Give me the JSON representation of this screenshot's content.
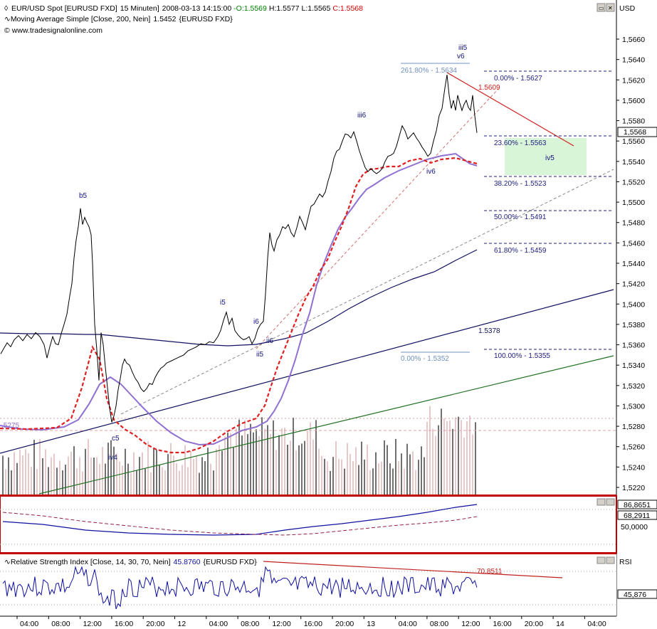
{
  "chart_data": {
    "type": "line",
    "title": "EUR/USD Spot [EURUSD FXD]  15 Minuten]",
    "header": {
      "symbol": "EUR/USD Spot [EURUSD FXD]",
      "interval": "15 Minuten]",
      "datetime": "2008-03-13 14:15:00",
      "open": "-O:1.5569",
      "high": "H:1.5577",
      "low": "L:1.5565",
      "close": "C:1.5568",
      "ma_label": "Moving Average Simple [Close, 200, Nein]",
      "ma_value": "1.5452",
      "ma_symbol": "{EURUSD FXD}",
      "website": "www.tradesignalonline.com"
    },
    "price_axis_title": "USD",
    "y_ticks": [
      "1,5660",
      "1,5640",
      "1,5620",
      "1,5600",
      "1,5580",
      "1,5560",
      "1,5540",
      "1,5520",
      "1,5500",
      "1,5480",
      "1,5460",
      "1,5440",
      "1,5420",
      "1,5400",
      "1,5380",
      "1,5360",
      "1,5340",
      "1,5320",
      "1,5300",
      "1,5280",
      "1,5260",
      "1,5240",
      "1,5220"
    ],
    "ylim": [
      1.5212,
      1.568
    ],
    "last_price": "1,5568",
    "price_series": [
      [
        1,
        1.5351
      ],
      [
        5,
        1.5356
      ],
      [
        10,
        1.5362
      ],
      [
        15,
        1.5358
      ],
      [
        20,
        1.5365
      ],
      [
        26,
        1.5369
      ],
      [
        32,
        1.5364
      ],
      [
        38,
        1.537
      ],
      [
        44,
        1.5366
      ],
      [
        50,
        1.5372
      ],
      [
        56,
        1.5368
      ],
      [
        62,
        1.536
      ],
      [
        66,
        1.5347
      ],
      [
        70,
        1.5358
      ],
      [
        74,
        1.5368
      ],
      [
        78,
        1.5361
      ],
      [
        82,
        1.536
      ],
      [
        86,
        1.5371
      ],
      [
        90,
        1.538
      ],
      [
        94,
        1.539
      ],
      [
        98,
        1.5408
      ],
      [
        101,
        1.542
      ],
      [
        104,
        1.5445
      ],
      [
        107,
        1.5463
      ],
      [
        110,
        1.5476
      ],
      [
        113,
        1.5494
      ],
      [
        116,
        1.5478
      ],
      [
        119,
        1.5485
      ],
      [
        122,
        1.548
      ],
      [
        125,
        1.5476
      ],
      [
        128,
        1.5468
      ],
      [
        130,
        1.544
      ],
      [
        133,
        1.538
      ],
      [
        136,
        1.5355
      ],
      [
        139,
        1.5325
      ],
      [
        142,
        1.5372
      ],
      [
        145,
        1.536
      ],
      [
        148,
        1.5338
      ],
      [
        151,
        1.5318
      ],
      [
        154,
        1.5298
      ],
      [
        157,
        1.5284
      ],
      [
        160,
        1.529
      ],
      [
        163,
        1.53
      ],
      [
        166,
        1.5316
      ],
      [
        169,
        1.5327
      ],
      [
        172,
        1.534
      ],
      [
        175,
        1.5346
      ],
      [
        178,
        1.5342
      ],
      [
        182,
        1.534
      ],
      [
        186,
        1.5333
      ],
      [
        190,
        1.5327
      ],
      [
        194,
        1.5323
      ],
      [
        198,
        1.5317
      ],
      [
        202,
        1.5314
      ],
      [
        206,
        1.5317
      ],
      [
        210,
        1.5322
      ],
      [
        214,
        1.5321
      ],
      [
        218,
        1.5328
      ],
      [
        222,
        1.5333
      ],
      [
        226,
        1.5337
      ],
      [
        230,
        1.5339
      ],
      [
        234,
        1.5342
      ],
      [
        240,
        1.5344
      ],
      [
        246,
        1.5346
      ],
      [
        252,
        1.5348
      ],
      [
        258,
        1.535
      ],
      [
        264,
        1.5354
      ],
      [
        270,
        1.5356
      ],
      [
        276,
        1.5358
      ],
      [
        282,
        1.5361
      ],
      [
        288,
        1.536
      ],
      [
        294,
        1.5363
      ],
      [
        300,
        1.5362
      ],
      [
        306,
        1.5368
      ],
      [
        310,
        1.5374
      ],
      [
        314,
        1.5384
      ],
      [
        318,
        1.5392
      ],
      [
        322,
        1.538
      ],
      [
        326,
        1.5386
      ],
      [
        330,
        1.5374
      ],
      [
        334,
        1.537
      ],
      [
        338,
        1.5367
      ],
      [
        342,
        1.5365
      ],
      [
        346,
        1.5366
      ],
      [
        350,
        1.5368
      ],
      [
        354,
        1.5361
      ],
      [
        358,
        1.5366
      ],
      [
        362,
        1.5375
      ],
      [
        366,
        1.538
      ],
      [
        370,
        1.5383
      ],
      [
        373,
        1.541
      ],
      [
        376,
        1.5445
      ],
      [
        379,
        1.547
      ],
      [
        382,
        1.5458
      ],
      [
        385,
        1.5452
      ],
      [
        389,
        1.5463
      ],
      [
        393,
        1.5468
      ],
      [
        397,
        1.5476
      ],
      [
        401,
        1.5474
      ],
      [
        405,
        1.5478
      ],
      [
        409,
        1.547
      ],
      [
        413,
        1.5466
      ],
      [
        417,
        1.5475
      ],
      [
        421,
        1.5486
      ],
      [
        425,
        1.548
      ],
      [
        429,
        1.5473
      ],
      [
        433,
        1.5485
      ],
      [
        437,
        1.5496
      ],
      [
        441,
        1.5498
      ],
      [
        445,
        1.5503
      ],
      [
        449,
        1.5508
      ],
      [
        453,
        1.5505
      ],
      [
        457,
        1.551
      ],
      [
        461,
        1.5521
      ],
      [
        465,
        1.553
      ],
      [
        469,
        1.5543
      ],
      [
        473,
        1.555
      ],
      [
        477,
        1.5552
      ],
      [
        481,
        1.556
      ],
      [
        485,
        1.5567
      ],
      [
        489,
        1.5566
      ],
      [
        493,
        1.5563
      ],
      [
        497,
        1.5569
      ],
      [
        501,
        1.556
      ],
      [
        505,
        1.555
      ],
      [
        509,
        1.5542
      ],
      [
        513,
        1.5534
      ],
      [
        517,
        1.553
      ],
      [
        521,
        1.5533
      ],
      [
        525,
        1.553
      ],
      [
        529,
        1.5528
      ],
      [
        533,
        1.553
      ],
      [
        537,
        1.5533
      ],
      [
        541,
        1.554
      ],
      [
        545,
        1.5545
      ],
      [
        549,
        1.5546
      ],
      [
        553,
        1.5548
      ],
      [
        557,
        1.5555
      ],
      [
        561,
        1.5565
      ],
      [
        565,
        1.5575
      ],
      [
        569,
        1.557
      ],
      [
        573,
        1.5562
      ],
      [
        577,
        1.5565
      ],
      [
        581,
        1.5568
      ],
      [
        585,
        1.5563
      ],
      [
        589,
        1.5559
      ],
      [
        593,
        1.5554
      ],
      [
        597,
        1.555
      ],
      [
        601,
        1.5545
      ],
      [
        605,
        1.5548
      ],
      [
        609,
        1.556
      ],
      [
        613,
        1.557
      ],
      [
        617,
        1.5585
      ],
      [
        621,
        1.5592
      ],
      [
        625,
        1.5612
      ],
      [
        628,
        1.5625
      ],
      [
        631,
        1.5605
      ],
      [
        634,
        1.5592
      ],
      [
        637,
        1.56
      ],
      [
        640,
        1.559
      ],
      [
        643,
        1.5605
      ],
      [
        646,
        1.5597
      ],
      [
        649,
        1.559
      ],
      [
        652,
        1.5596
      ],
      [
        655,
        1.56
      ],
      [
        658,
        1.5593
      ],
      [
        661,
        1.559
      ],
      [
        664,
        1.5605
      ],
      [
        667,
        1.5585
      ],
      [
        670,
        1.5568
      ]
    ],
    "series": [
      {
        "name": "Moving Average Simple 200",
        "value": "1.5452"
      },
      {
        "name": "MA fast (dashed red)"
      },
      {
        "name": "MA (purple)"
      }
    ],
    "annotations": {
      "fib_left": [
        {
          "label": "261.80% - 1.5634"
        },
        {
          "label": "0.00% - 1.5352"
        }
      ],
      "fib_right": [
        {
          "label": "0.00% - 1.5627"
        },
        {
          "label": "23.60% - 1.5563"
        },
        {
          "label": "38.20% - 1.5523"
        },
        {
          "label": "50.00% - 1.5491"
        },
        {
          "label": "61.80% - 1.5459"
        },
        {
          "label": "100.00% - 1.5355"
        }
      ],
      "trendline_labels": [
        "1.5609",
        "1.5378"
      ],
      "waves": [
        "b5",
        "c5",
        "iv4",
        "i5",
        "ii5",
        "i6",
        "ii6",
        "iii6",
        "iv6",
        "iii5",
        "v6",
        "iv5"
      ],
      "ma_side_label": ",5275"
    },
    "x_ticks": [
      "04:00",
      "08:00",
      "12:00",
      "16:00",
      "20:00",
      "12",
      "04:00",
      "08:00",
      "12:00",
      "16:00",
      "20:00",
      "13",
      "04:00",
      "08:00",
      "12:00",
      "16:00",
      "20:00",
      "14",
      "04:00"
    ],
    "mid_panel": {
      "y_ticks": [
        "86,8651",
        "68,2911",
        "50,0000"
      ]
    },
    "rsi": {
      "label": "Relative Strength Index [Close, 14, 30, 70, Nein]",
      "value": "45.8760",
      "symbol": "{EURUSD FXD}",
      "axis_title": "RSI",
      "last": "45,876",
      "trend_label": "70.8511"
    }
  }
}
